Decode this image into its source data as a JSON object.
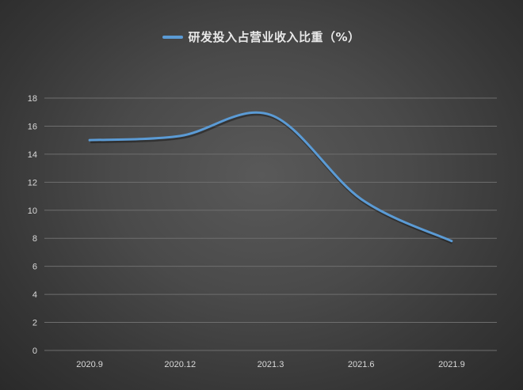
{
  "chart_data": {
    "type": "line",
    "title": "",
    "xlabel": "",
    "ylabel": "",
    "categories": [
      "2020.9",
      "2020.12",
      "2021.3",
      "2021.6",
      "2021.9"
    ],
    "series": [
      {
        "name": "研发投入占营业收入比重（%）",
        "values": [
          15.0,
          15.3,
          16.8,
          10.8,
          7.8
        ],
        "color": "#5b9bd5"
      }
    ],
    "ylim": [
      0,
      18
    ],
    "yticks": [
      0,
      2,
      4,
      6,
      8,
      10,
      12,
      14,
      16,
      18
    ],
    "smooth": true,
    "grid": "horizontal",
    "legend_position": "top-center"
  }
}
